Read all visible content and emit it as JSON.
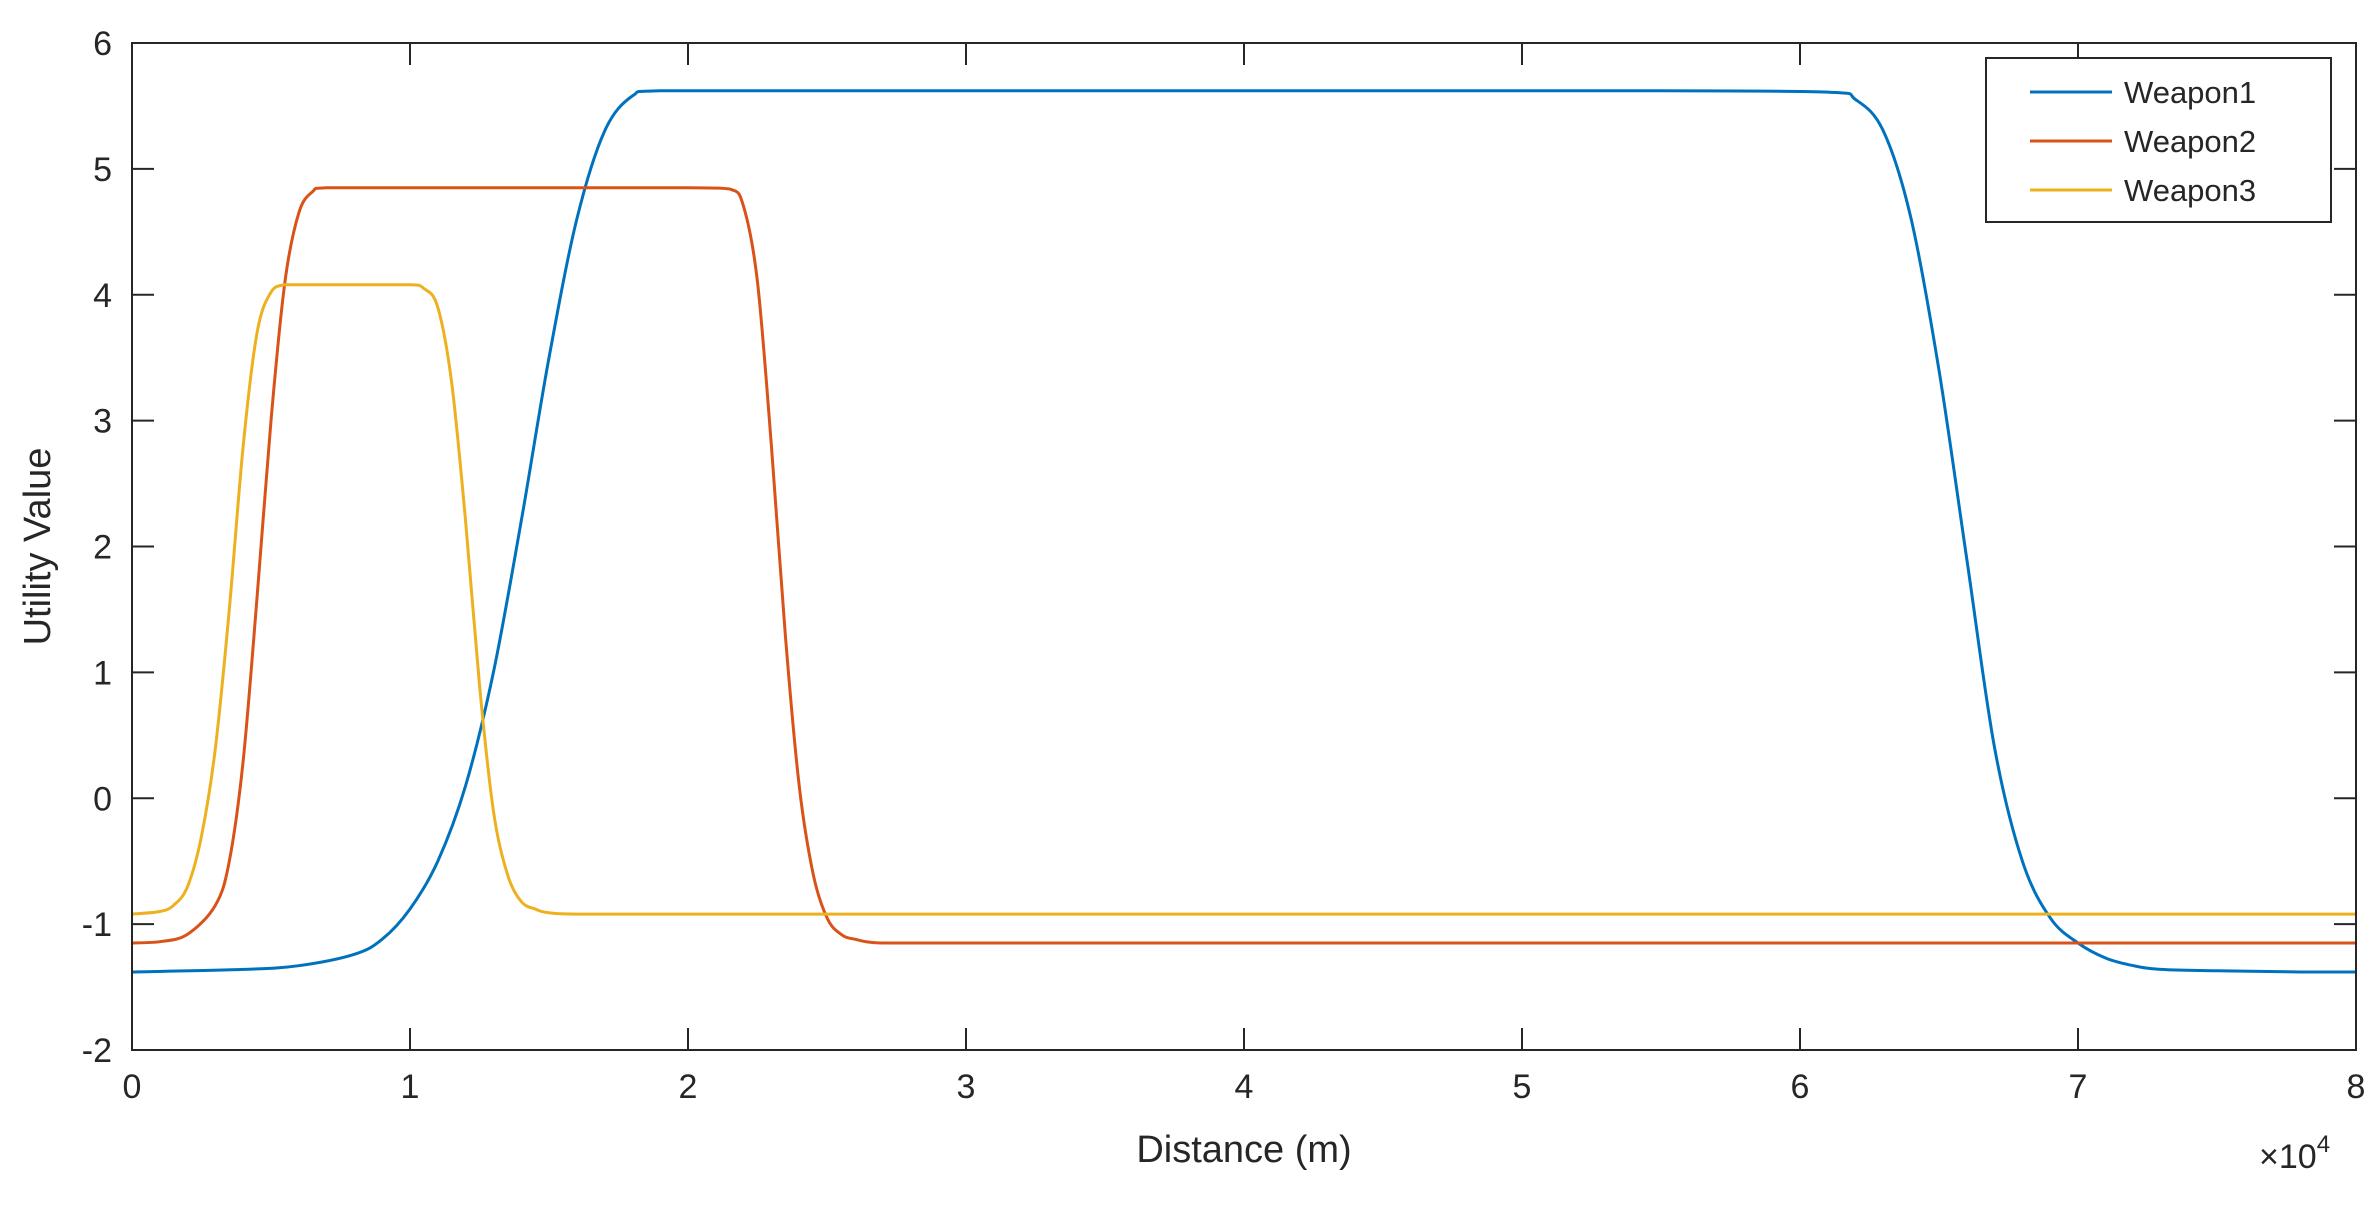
{
  "chart_data": {
    "type": "line",
    "title": "",
    "xlabel": "Distance (m)",
    "ylabel": "Utility Value",
    "x_exponent_label": "×10",
    "x_exponent_power": "4",
    "xlim": [
      0,
      80000
    ],
    "ylim": [
      -2,
      6
    ],
    "x_ticks": [
      0,
      10000,
      20000,
      30000,
      40000,
      50000,
      60000,
      70000,
      80000
    ],
    "x_tick_labels": [
      "0",
      "1",
      "2",
      "3",
      "4",
      "5",
      "6",
      "7",
      "8"
    ],
    "y_ticks": [
      -2,
      -1,
      0,
      1,
      2,
      3,
      4,
      5,
      6
    ],
    "y_tick_labels": [
      "-2",
      "-1",
      "0",
      "1",
      "2",
      "3",
      "4",
      "5",
      "6"
    ],
    "grid": false,
    "legend_position": "top-right",
    "series": [
      {
        "name": "Weapon1",
        "color": "#0072BD",
        "x": [
          0,
          4000,
          6000,
          8000,
          9000,
          10000,
          11000,
          12000,
          13000,
          14000,
          15000,
          16000,
          17000,
          18000,
          19000,
          25000,
          40000,
          55000,
          61000,
          62000,
          63000,
          64000,
          65000,
          66000,
          67000,
          68000,
          69000,
          70000,
          71000,
          72000,
          73000,
          75000,
          78000,
          80000
        ],
        "y": [
          -1.38,
          -1.36,
          -1.33,
          -1.24,
          -1.12,
          -0.88,
          -0.5,
          0.1,
          1.0,
          2.2,
          3.5,
          4.6,
          5.3,
          5.58,
          5.62,
          5.62,
          5.62,
          5.62,
          5.61,
          5.55,
          5.3,
          4.6,
          3.4,
          1.9,
          0.4,
          -0.5,
          -0.95,
          -1.15,
          -1.27,
          -1.33,
          -1.36,
          -1.37,
          -1.38,
          -1.38
        ]
      },
      {
        "name": "Weapon2",
        "color": "#D95319",
        "x": [
          0,
          1000,
          2000,
          3000,
          3500,
          4000,
          4500,
          5000,
          5500,
          6000,
          6500,
          7000,
          10000,
          15000,
          20000,
          21500,
          22000,
          22500,
          23000,
          23500,
          24000,
          24500,
          25000,
          25500,
          26000,
          27000,
          30000,
          50000,
          80000
        ],
        "y": [
          -1.15,
          -1.14,
          -1.08,
          -0.85,
          -0.5,
          0.3,
          1.6,
          3.0,
          4.1,
          4.65,
          4.82,
          4.85,
          4.85,
          4.85,
          4.85,
          4.84,
          4.7,
          4.1,
          2.8,
          1.3,
          0.1,
          -0.6,
          -0.95,
          -1.08,
          -1.12,
          -1.15,
          -1.15,
          -1.15,
          -1.15
        ]
      },
      {
        "name": "Weapon3",
        "color": "#EDB120",
        "x": [
          0,
          1000,
          1500,
          2000,
          2500,
          3000,
          3500,
          4000,
          4500,
          5000,
          5500,
          6000,
          8000,
          10000,
          10500,
          11000,
          11500,
          12000,
          12500,
          13000,
          13500,
          14000,
          14500,
          15000,
          16000,
          20000,
          40000,
          60000,
          80000
        ],
        "y": [
          -0.92,
          -0.9,
          -0.85,
          -0.7,
          -0.3,
          0.4,
          1.5,
          2.8,
          3.7,
          4.02,
          4.08,
          4.08,
          4.08,
          4.08,
          4.05,
          3.9,
          3.3,
          2.2,
          0.9,
          -0.1,
          -0.6,
          -0.82,
          -0.88,
          -0.91,
          -0.92,
          -0.92,
          -0.92,
          -0.92,
          -0.92
        ]
      }
    ]
  }
}
